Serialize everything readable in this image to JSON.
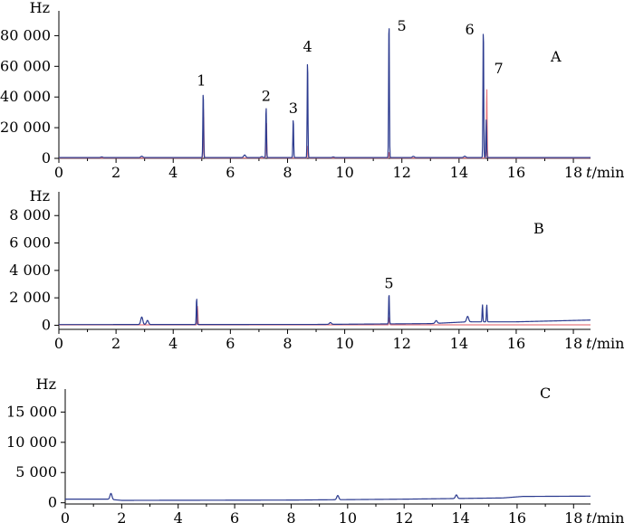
{
  "chart_data": [
    {
      "type": "line",
      "panel_label": "A",
      "y_unit": "Hz",
      "x_label_italic": "t",
      "x_label_unit": "/min",
      "xlim": [
        0,
        18.6
      ],
      "ylim": [
        0,
        95000
      ],
      "x_ticks": [
        0,
        2,
        4,
        6,
        8,
        10,
        12,
        14,
        16,
        18
      ],
      "x_tick_labels": [
        "0",
        "2",
        "4",
        "6",
        "8",
        "10",
        "12",
        "14",
        "16",
        "18"
      ],
      "y_ticks": [
        0,
        20000,
        40000,
        60000,
        80000
      ],
      "y_tick_labels": [
        "0",
        "20 000",
        "40 000",
        "60 000",
        "80 000"
      ],
      "series": [
        {
          "color": "#2b3a8f",
          "baseline": 500,
          "noise": [
            [
              1.5,
              900
            ],
            [
              2.9,
              1400
            ],
            [
              6.5,
              2200
            ],
            [
              7.1,
              1100
            ],
            [
              9.6,
              900
            ],
            [
              12.4,
              1300
            ],
            [
              14.2,
              1400
            ]
          ],
          "peaks": [
            {
              "x": 5.05,
              "y": 44000,
              "label": "1"
            },
            {
              "x": 7.25,
              "y": 34000,
              "label": "2"
            },
            {
              "x": 8.2,
              "y": 26000,
              "label": "3"
            },
            {
              "x": 8.7,
              "y": 65000,
              "label": "4"
            },
            {
              "x": 11.55,
              "y": 92000,
              "label": "5"
            },
            {
              "x": 14.85,
              "y": 87000,
              "label": "6"
            },
            {
              "x": 14.95,
              "y": 25000,
              "label": ""
            }
          ]
        },
        {
          "color": "#e8797f",
          "baseline": 200,
          "noise": [],
          "peaks": [
            {
              "x": 5.06,
              "y": 33000,
              "label": ""
            },
            {
              "x": 7.26,
              "y": 25000,
              "label": ""
            },
            {
              "x": 8.71,
              "y": 8000,
              "label": ""
            },
            {
              "x": 11.56,
              "y": 4000,
              "label": ""
            },
            {
              "x": 14.97,
              "y": 46000,
              "label": "7"
            }
          ]
        }
      ]
    },
    {
      "type": "line",
      "panel_label": "B",
      "y_unit": "Hz",
      "x_label_italic": "t",
      "x_label_unit": "/min",
      "xlim": [
        0,
        18.6
      ],
      "ylim": [
        -300,
        9600
      ],
      "x_ticks": [
        0,
        2,
        4,
        6,
        8,
        10,
        12,
        14,
        16,
        18
      ],
      "x_tick_labels": [
        "0",
        "2",
        "4",
        "6",
        "8",
        "10",
        "12",
        "14",
        "16",
        "18"
      ],
      "y_ticks": [
        0,
        2000,
        4000,
        6000,
        8000
      ],
      "y_tick_labels": [
        "0",
        "2 000",
        "4 000",
        "6 000",
        "8 000"
      ],
      "series": [
        {
          "color": "#2b3a8f",
          "baseline": 50,
          "drift": [
            [
              0,
              50
            ],
            [
              9.0,
              60
            ],
            [
              13.0,
              120
            ],
            [
              14.3,
              250
            ],
            [
              16.0,
              250
            ],
            [
              18.6,
              380
            ]
          ],
          "noise": [
            [
              2.9,
              600
            ],
            [
              3.1,
              350
            ],
            [
              9.5,
              180
            ],
            [
              13.2,
              250
            ],
            [
              14.3,
              450
            ]
          ],
          "peaks": [
            {
              "x": 4.82,
              "y": 2000,
              "label": ""
            },
            {
              "x": 11.55,
              "y": 2300,
              "label": "5"
            },
            {
              "x": 14.82,
              "y": 1300,
              "label": ""
            },
            {
              "x": 14.97,
              "y": 1300,
              "label": ""
            }
          ]
        },
        {
          "color": "#e8797f",
          "baseline": 30,
          "drift": [],
          "noise": [],
          "peaks": [
            {
              "x": 4.85,
              "y": 1400,
              "label": ""
            },
            {
              "x": 11.56,
              "y": 600,
              "label": ""
            }
          ]
        }
      ]
    },
    {
      "type": "line",
      "panel_label": "C",
      "y_unit": "Hz",
      "x_label_italic": "t",
      "x_label_unit": "/min",
      "xlim": [
        0,
        18.6
      ],
      "ylim": [
        -200,
        18500
      ],
      "x_ticks": [
        0,
        2,
        4,
        6,
        8,
        10,
        12,
        14,
        16,
        18
      ],
      "x_tick_labels": [
        "0",
        "2",
        "4",
        "6",
        "8",
        "10",
        "12",
        "14",
        "16",
        "18"
      ],
      "y_ticks": [
        0,
        5000,
        10000,
        15000
      ],
      "y_tick_labels": [
        "0",
        "5 000",
        "10 000",
        "15 000"
      ],
      "series": [
        {
          "color": "#2b3a8f",
          "baseline": 600,
          "drift": [
            [
              0,
              600
            ],
            [
              1.5,
              600
            ],
            [
              2.0,
              400
            ],
            [
              8.0,
              450
            ],
            [
              12.0,
              600
            ],
            [
              15.5,
              800
            ],
            [
              16.2,
              1050
            ],
            [
              18.6,
              1100
            ]
          ],
          "noise": [
            [
              1.62,
              1600
            ],
            [
              9.65,
              1300
            ],
            [
              13.85,
              1200
            ]
          ],
          "peaks": []
        }
      ]
    }
  ]
}
